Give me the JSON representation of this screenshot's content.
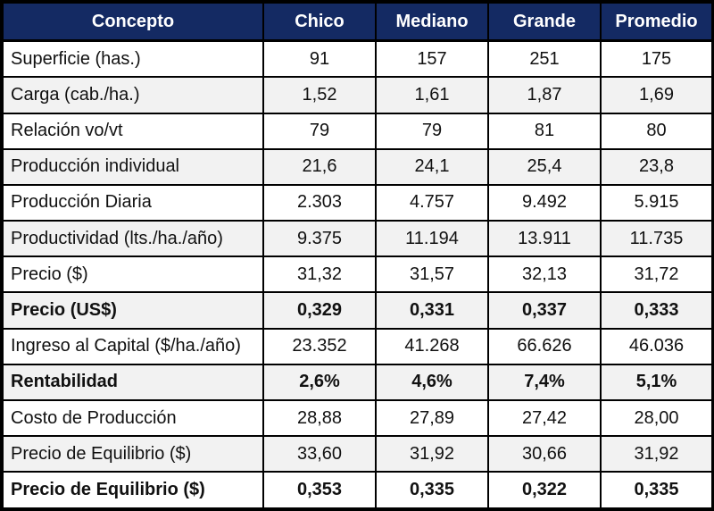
{
  "table": {
    "headers": [
      "Concepto",
      "Chico",
      "Mediano",
      "Grande",
      "Promedio"
    ],
    "rows": [
      {
        "label": "Superficie (has.)",
        "values": [
          "91",
          "157",
          "251",
          "175"
        ],
        "bold": false
      },
      {
        "label": "Carga (cab./ha.)",
        "values": [
          "1,52",
          "1,61",
          "1,87",
          "1,69"
        ],
        "bold": false
      },
      {
        "label": "Relación vo/vt",
        "values": [
          "79",
          "79",
          "81",
          "80"
        ],
        "bold": false
      },
      {
        "label": "Producción individual",
        "values": [
          "21,6",
          "24,1",
          "25,4",
          "23,8"
        ],
        "bold": false
      },
      {
        "label": "Producción Diaria",
        "values": [
          "2.303",
          "4.757",
          "9.492",
          "5.915"
        ],
        "bold": false
      },
      {
        "label": "Productividad (lts./ha./año)",
        "values": [
          "9.375",
          "11.194",
          "13.911",
          "11.735"
        ],
        "bold": false
      },
      {
        "label": "Precio ($)",
        "values": [
          "31,32",
          "31,57",
          "32,13",
          "31,72"
        ],
        "bold": false
      },
      {
        "label": "Precio (US$)",
        "values": [
          "0,329",
          "0,331",
          "0,337",
          "0,333"
        ],
        "bold": true
      },
      {
        "label": "Ingreso al Capital ($/ha./año)",
        "values": [
          "23.352",
          "41.268",
          "66.626",
          "46.036"
        ],
        "bold": false
      },
      {
        "label": "Rentabilidad",
        "values": [
          "2,6%",
          "4,6%",
          "7,4%",
          "5,1%"
        ],
        "bold": true
      },
      {
        "label": "Costo de Producción",
        "values": [
          "28,88",
          "27,89",
          "27,42",
          "28,00"
        ],
        "bold": false
      },
      {
        "label": "Precio de Equilibrio ($)",
        "values": [
          "33,60",
          "31,92",
          "30,66",
          "31,92"
        ],
        "bold": false
      },
      {
        "label": "Precio de Equilibrio ($)",
        "values": [
          "0,353",
          "0,335",
          "0,322",
          "0,335"
        ],
        "bold": true
      }
    ]
  },
  "colors": {
    "header_bg": "#142A63",
    "header_text": "#FFFFFF",
    "row_bg": "#FFFFFF",
    "row_alt_bg": "#F2F2F2",
    "border": "#000000"
  },
  "chart_data": {
    "type": "table",
    "title": "",
    "columns": [
      "Concepto",
      "Chico",
      "Mediano",
      "Grande",
      "Promedio"
    ],
    "rows": [
      [
        "Superficie (has.)",
        91,
        157,
        251,
        175
      ],
      [
        "Carga (cab./ha.)",
        "1,52",
        "1,61",
        "1,87",
        "1,69"
      ],
      [
        "Relación vo/vt",
        79,
        79,
        81,
        80
      ],
      [
        "Producción individual",
        "21,6",
        "24,1",
        "25,4",
        "23,8"
      ],
      [
        "Producción Diaria",
        "2.303",
        "4.757",
        "9.492",
        "5.915"
      ],
      [
        "Productividad (lts./ha./año)",
        "9.375",
        "11.194",
        "13.911",
        "11.735"
      ],
      [
        "Precio ($)",
        "31,32",
        "31,57",
        "32,13",
        "31,72"
      ],
      [
        "Precio (US$)",
        "0,329",
        "0,331",
        "0,337",
        "0,333"
      ],
      [
        "Ingreso al Capital ($/ha./año)",
        "23.352",
        "41.268",
        "66.626",
        "46.036"
      ],
      [
        "Rentabilidad",
        "2,6%",
        "4,6%",
        "7,4%",
        "5,1%"
      ],
      [
        "Costo de Producción",
        "28,88",
        "27,89",
        "27,42",
        "28,00"
      ],
      [
        "Precio de Equilibrio ($)",
        "33,60",
        "31,92",
        "30,66",
        "31,92"
      ],
      [
        "Precio de Equilibrio ($)",
        "0,353",
        "0,335",
        "0,322",
        "0,335"
      ]
    ]
  }
}
